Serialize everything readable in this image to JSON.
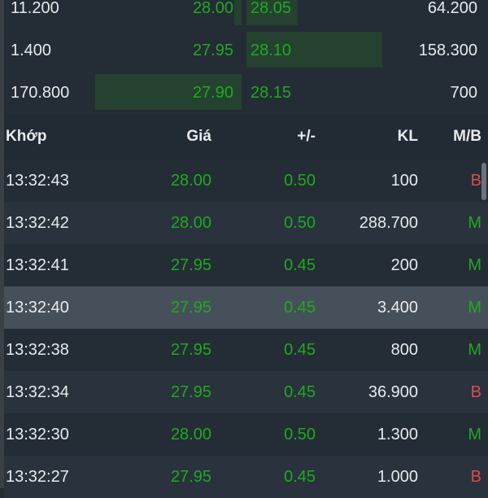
{
  "order_book": [
    {
      "bid_volume": "11.200",
      "bid_price": "28.00",
      "ask_price": "28.05",
      "ask_volume": "64.200",
      "bid_depth": 0.05,
      "ask_depth": 0.38
    },
    {
      "bid_volume": "1.400",
      "bid_price": "27.95",
      "ask_price": "28.10",
      "ask_volume": "158.300",
      "bid_depth": 0,
      "ask_depth": 1.0
    },
    {
      "bid_volume": "170.800",
      "bid_price": "27.90",
      "ask_price": "28.15",
      "ask_volume": "700",
      "bid_depth": 1.0,
      "ask_depth": 0
    }
  ],
  "trades_header": {
    "time": "Khớp",
    "price": "Giá",
    "change": "+/-",
    "volume": "KL",
    "side": "M/B"
  },
  "trades": [
    {
      "time": "13:32:43",
      "price": "28.00",
      "change": "0.50",
      "volume": "100",
      "side": "B"
    },
    {
      "time": "13:32:42",
      "price": "28.00",
      "change": "0.50",
      "volume": "288.700",
      "side": "M"
    },
    {
      "time": "13:32:41",
      "price": "27.95",
      "change": "0.45",
      "volume": "200",
      "side": "M"
    },
    {
      "time": "13:32:40",
      "price": "27.95",
      "change": "0.45",
      "volume": "3.400",
      "side": "M"
    },
    {
      "time": "13:32:38",
      "price": "27.95",
      "change": "0.45",
      "volume": "800",
      "side": "M"
    },
    {
      "time": "13:32:34",
      "price": "27.95",
      "change": "0.45",
      "volume": "36.900",
      "side": "B"
    },
    {
      "time": "13:32:30",
      "price": "28.00",
      "change": "0.50",
      "volume": "1.300",
      "side": "M"
    },
    {
      "time": "13:32:27",
      "price": "27.95",
      "change": "0.45",
      "volume": "1.000",
      "side": "B"
    }
  ],
  "selected_trade_index": 3,
  "colors": {
    "up": "#1faa1f",
    "sell": "#e0494a",
    "buy": "#1faa1f",
    "background": "#242c36",
    "depth_bar": "#24422f"
  }
}
